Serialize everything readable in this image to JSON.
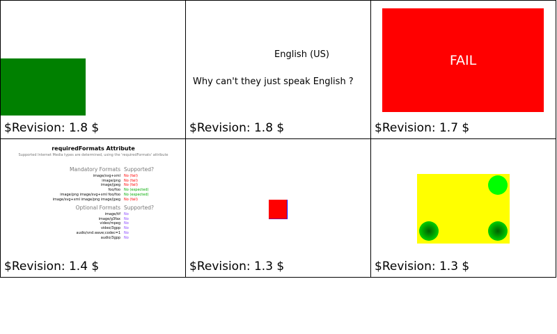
{
  "cells": [
    {
      "revision": "$Revision: 1.8 $"
    },
    {
      "revision": "$Revision: 1.8 $",
      "lang_label": "English (US)",
      "message": "Why can't they just speak English ?"
    },
    {
      "revision": "$Revision: 1.7 $",
      "fail_text": "FAIL"
    },
    {
      "revision": "$Revision: 1.4 $",
      "title": "requiredFormats Attribute",
      "subtitle": "Supported Internet Media types are determined, using the 'requiredFormats' attribute",
      "mandatory_header": "Mandatory Formats",
      "supported_header": "Supported?",
      "mandatory": [
        {
          "format": "image/svg+xml",
          "result": "No (fail)",
          "color": "#ff0000"
        },
        {
          "format": "image/png",
          "result": "No (fail)",
          "color": "#ff0000"
        },
        {
          "format": "image/jpeg",
          "result": "No (fail)",
          "color": "#ff0000"
        },
        {
          "format": "foo/foo",
          "result": "No (expected)",
          "color": "#00aa00"
        },
        {
          "format": "image/png image/svg+xml foo/foo",
          "result": "No (expected)",
          "color": "#00aa00"
        },
        {
          "format": "image/svg+xml image/png image/jpeg",
          "result": "No (fail)",
          "color": "#ff0000"
        }
      ],
      "optional_header": "Optional Formats",
      "optional": [
        {
          "format": "image/tif",
          "result": "No",
          "color": "#8844ff"
        },
        {
          "format": "image/g3fax",
          "result": "No",
          "color": "#8844ff"
        },
        {
          "format": "video/mpeg",
          "result": "No",
          "color": "#8844ff"
        },
        {
          "format": "video/3gpp",
          "result": "No",
          "color": "#8844ff"
        },
        {
          "format": "audio/vnd.wave;codec=1",
          "result": "No",
          "color": "#8844ff"
        },
        {
          "format": "audio/3gpp",
          "result": "No",
          "color": "#8844ff"
        }
      ]
    },
    {
      "revision": "$Revision: 1.3 $"
    },
    {
      "revision": "$Revision: 1.3 $"
    }
  ]
}
